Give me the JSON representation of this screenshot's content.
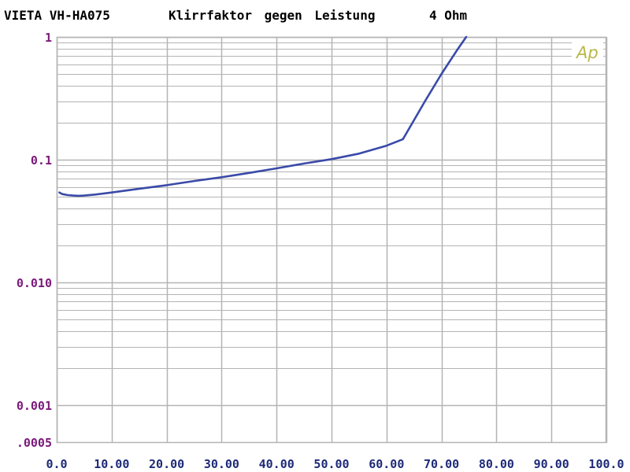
{
  "header": {
    "model": "VIETA VH-HA075",
    "title": "Klirrfaktor gegen Leistung",
    "load": "4 Ohm"
  },
  "logo_text": "Ap",
  "colors": {
    "background": "#ffffff",
    "grid": "#b4b4b4",
    "trace": "#3a4aa8",
    "y_tick_label": "#7a1a7a",
    "x_tick_label": "#1e2a78",
    "title": "#000000",
    "logo": "#b8b84a"
  },
  "chart_data": {
    "type": "line",
    "title": "Klirrfaktor gegen Leistung",
    "xlabel": "",
    "ylabel": "",
    "xlim": [
      0,
      100
    ],
    "ylim": [
      0.0005,
      1
    ],
    "y_scale": "log",
    "grid": true,
    "x_ticks": [
      0,
      10,
      20,
      30,
      40,
      50,
      60,
      70,
      80,
      90,
      100
    ],
    "x_tick_labels": [
      "0.0",
      "10.00",
      "20.00",
      "30.00",
      "40.00",
      "50.00",
      "60.00",
      "70.00",
      "80.00",
      "90.00",
      "100.0"
    ],
    "y_ticks": [
      1,
      0.1,
      0.01,
      0.001,
      0.0005
    ],
    "y_tick_labels": [
      "1",
      "0.1",
      "0.010",
      "0.001",
      ".0005"
    ],
    "series": [
      {
        "x": [
          0.5,
          1,
          2,
          3,
          4,
          5,
          7,
          10,
          15,
          20,
          25,
          30,
          35,
          40,
          45,
          50,
          55,
          60,
          63,
          67,
          70,
          73,
          74.5
        ],
        "values": [
          0.054,
          0.0525,
          0.0515,
          0.051,
          0.0508,
          0.051,
          0.052,
          0.054,
          0.058,
          0.062,
          0.067,
          0.072,
          0.078,
          0.085,
          0.093,
          0.101,
          0.112,
          0.13,
          0.147,
          0.3,
          0.5,
          0.8,
          1.0
        ]
      }
    ]
  }
}
